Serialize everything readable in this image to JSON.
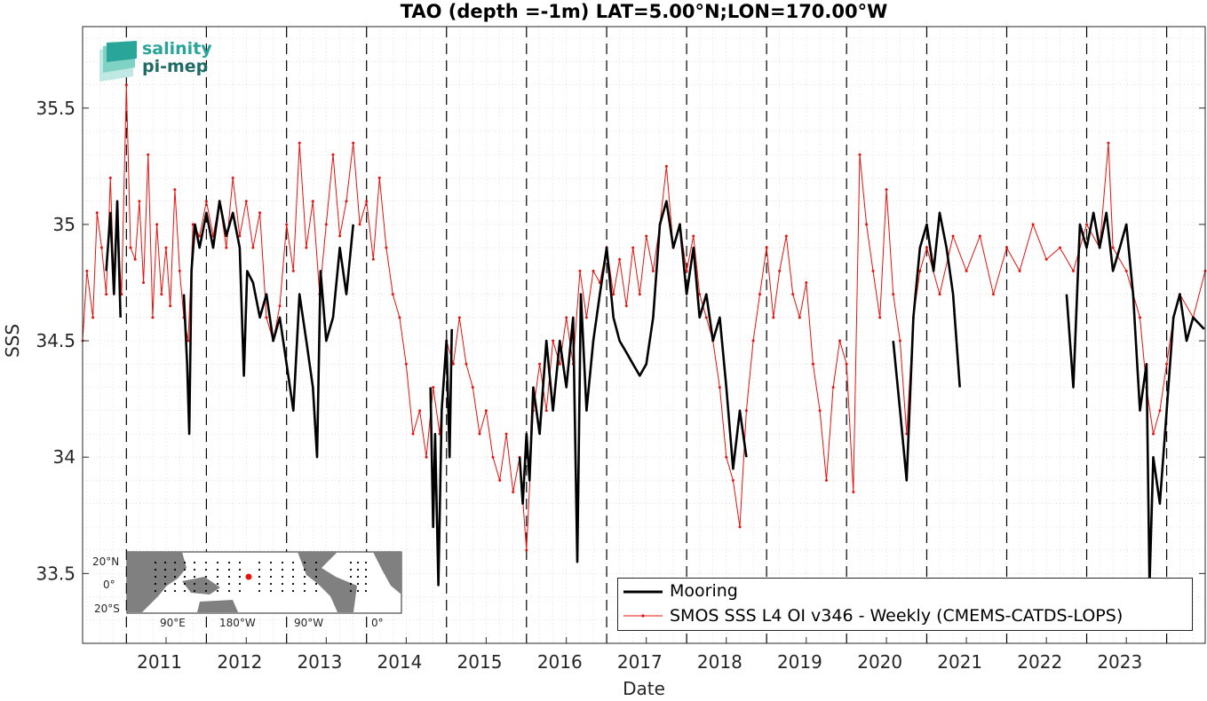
{
  "chart_data": {
    "type": "line",
    "title": "TAO (depth =-1m) LAT=5.00°N;LON=170.00°W",
    "xlabel": "Date",
    "ylabel": "SSS",
    "xlim": [
      "2010-06-15",
      "2024-06-25"
    ],
    "ylim": [
      33.2,
      35.85
    ],
    "x_ticks": [
      "2011",
      "2012",
      "2013",
      "2014",
      "2015",
      "2016",
      "2017",
      "2018",
      "2019",
      "2020",
      "2021",
      "2022",
      "2023"
    ],
    "y_ticks": [
      "33.5",
      "34",
      "34.5",
      "35",
      "35.5"
    ],
    "grid": true,
    "legend_position": "bottom-right",
    "series": [
      {
        "name": "Mooring",
        "color": "#000000",
        "points": [
          [
            "2010-10-01",
            34.8
          ],
          [
            "2010-10-20",
            35.05
          ],
          [
            "2010-11-05",
            34.7
          ],
          [
            "2010-11-20",
            35.1
          ],
          [
            "2010-12-05",
            34.6
          ],
          [
            "2011-09-20",
            34.7
          ],
          [
            "2011-10-05",
            34.4
          ],
          [
            "2011-10-15",
            34.1
          ],
          [
            "2011-10-25",
            34.8
          ],
          [
            "2011-11-10",
            35.0
          ],
          [
            "2011-12-01",
            34.9
          ],
          [
            "2012-01-01",
            35.05
          ],
          [
            "2012-02-01",
            34.9
          ],
          [
            "2012-03-01",
            35.1
          ],
          [
            "2012-04-01",
            34.95
          ],
          [
            "2012-05-01",
            35.05
          ],
          [
            "2012-06-01",
            34.9
          ],
          [
            "2012-06-20",
            34.35
          ],
          [
            "2012-07-05",
            34.8
          ],
          [
            "2012-08-01",
            34.75
          ],
          [
            "2012-09-01",
            34.6
          ],
          [
            "2012-10-01",
            34.7
          ],
          [
            "2012-11-01",
            34.5
          ],
          [
            "2012-12-01",
            34.6
          ],
          [
            "2013-01-01",
            34.4
          ],
          [
            "2013-02-01",
            34.2
          ],
          [
            "2013-03-01",
            34.7
          ],
          [
            "2013-04-01",
            34.5
          ],
          [
            "2013-05-01",
            34.3
          ],
          [
            "2013-05-20",
            34.0
          ],
          [
            "2013-06-05",
            34.8
          ],
          [
            "2013-07-01",
            34.5
          ],
          [
            "2013-08-01",
            34.6
          ],
          [
            "2013-09-01",
            34.9
          ],
          [
            "2013-10-01",
            34.7
          ],
          [
            "2013-11-01",
            35.0
          ],
          [
            "2014-10-20",
            34.3
          ],
          [
            "2014-11-01",
            33.7
          ],
          [
            "2014-11-10",
            34.1
          ],
          [
            "2014-11-25",
            33.45
          ],
          [
            "2014-12-10",
            34.2
          ],
          [
            "2015-01-01",
            34.5
          ],
          [
            "2015-01-15",
            34.0
          ],
          [
            "2015-01-25",
            34.55
          ],
          [
            "2015-12-01",
            34.0
          ],
          [
            "2015-12-15",
            33.8
          ],
          [
            "2016-01-01",
            34.1
          ],
          [
            "2016-01-15",
            33.9
          ],
          [
            "2016-02-01",
            34.3
          ],
          [
            "2016-03-01",
            34.1
          ],
          [
            "2016-04-01",
            34.5
          ],
          [
            "2016-05-01",
            34.2
          ],
          [
            "2016-06-01",
            34.5
          ],
          [
            "2016-07-01",
            34.3
          ],
          [
            "2016-08-01",
            34.6
          ],
          [
            "2016-08-20",
            33.55
          ],
          [
            "2016-09-05",
            34.7
          ],
          [
            "2016-10-01",
            34.2
          ],
          [
            "2016-11-01",
            34.5
          ],
          [
            "2016-12-01",
            34.7
          ],
          [
            "2017-01-01",
            34.9
          ],
          [
            "2017-02-01",
            34.6
          ],
          [
            "2017-03-01",
            34.5
          ],
          [
            "2017-04-01",
            34.45
          ],
          [
            "2017-05-01",
            34.4
          ],
          [
            "2017-06-01",
            34.35
          ],
          [
            "2017-07-01",
            34.4
          ],
          [
            "2017-08-01",
            34.6
          ],
          [
            "2017-09-01",
            35.0
          ],
          [
            "2017-10-01",
            35.1
          ],
          [
            "2017-11-01",
            34.9
          ],
          [
            "2017-12-01",
            35.0
          ],
          [
            "2018-01-01",
            34.7
          ],
          [
            "2018-02-01",
            34.9
          ],
          [
            "2018-03-01",
            34.6
          ],
          [
            "2018-04-01",
            34.7
          ],
          [
            "2018-05-01",
            34.5
          ],
          [
            "2018-06-01",
            34.6
          ],
          [
            "2018-07-01",
            34.3
          ],
          [
            "2018-08-01",
            33.95
          ],
          [
            "2018-09-01",
            34.2
          ],
          [
            "2018-10-01",
            34.0
          ],
          [
            "2020-08-01",
            34.5
          ],
          [
            "2020-09-01",
            34.2
          ],
          [
            "2020-10-01",
            33.9
          ],
          [
            "2020-11-01",
            34.6
          ],
          [
            "2020-12-01",
            34.9
          ],
          [
            "2021-01-01",
            35.0
          ],
          [
            "2021-02-01",
            34.8
          ],
          [
            "2021-03-01",
            35.05
          ],
          [
            "2021-04-01",
            34.9
          ],
          [
            "2021-05-01",
            34.7
          ],
          [
            "2021-06-01",
            34.3
          ],
          [
            "2022-10-01",
            34.7
          ],
          [
            "2022-11-01",
            34.3
          ],
          [
            "2022-12-01",
            35.0
          ],
          [
            "2023-01-01",
            34.9
          ],
          [
            "2023-02-01",
            35.05
          ],
          [
            "2023-03-01",
            34.9
          ],
          [
            "2023-04-01",
            35.05
          ],
          [
            "2023-05-01",
            34.8
          ],
          [
            "2023-06-01",
            34.9
          ],
          [
            "2023-07-01",
            35.0
          ],
          [
            "2023-08-01",
            34.7
          ],
          [
            "2023-09-01",
            34.2
          ],
          [
            "2023-10-01",
            34.4
          ],
          [
            "2023-10-15",
            33.45
          ],
          [
            "2023-11-01",
            34.0
          ],
          [
            "2023-12-01",
            33.8
          ],
          [
            "2024-01-01",
            34.2
          ],
          [
            "2024-02-01",
            34.6
          ],
          [
            "2024-03-01",
            34.7
          ],
          [
            "2024-04-01",
            34.5
          ],
          [
            "2024-05-01",
            34.6
          ],
          [
            "2024-06-20",
            34.55
          ]
        ]
      },
      {
        "name": "SMOS SSS L4 OI v346 - Weekly (CMEMS-CATDS-LOPS)",
        "color": "#e8120e",
        "points": [
          [
            "2010-06-15",
            34.5
          ],
          [
            "2010-07-05",
            34.8
          ],
          [
            "2010-08-01",
            34.6
          ],
          [
            "2010-08-20",
            35.05
          ],
          [
            "2010-09-10",
            34.9
          ],
          [
            "2010-10-01",
            34.7
          ],
          [
            "2010-10-20",
            35.2
          ],
          [
            "2010-11-05",
            34.75
          ],
          [
            "2010-11-20",
            35.0
          ],
          [
            "2010-12-10",
            34.7
          ],
          [
            "2011-01-01",
            35.6
          ],
          [
            "2011-01-20",
            34.9
          ],
          [
            "2011-02-10",
            34.85
          ],
          [
            "2011-03-01",
            35.1
          ],
          [
            "2011-03-20",
            34.75
          ],
          [
            "2011-04-10",
            35.3
          ],
          [
            "2011-05-01",
            34.6
          ],
          [
            "2011-05-20",
            35.0
          ],
          [
            "2011-06-10",
            34.7
          ],
          [
            "2011-07-01",
            34.9
          ],
          [
            "2011-07-20",
            34.65
          ],
          [
            "2011-08-10",
            35.15
          ],
          [
            "2011-09-01",
            34.8
          ],
          [
            "2011-09-20",
            34.6
          ],
          [
            "2011-10-10",
            34.5
          ],
          [
            "2011-11-01",
            35.0
          ],
          [
            "2011-12-01",
            34.95
          ],
          [
            "2012-01-01",
            35.1
          ],
          [
            "2012-02-01",
            34.95
          ],
          [
            "2012-03-01",
            35.1
          ],
          [
            "2012-04-01",
            34.9
          ],
          [
            "2012-05-01",
            35.2
          ],
          [
            "2012-06-01",
            34.95
          ],
          [
            "2012-07-01",
            35.1
          ],
          [
            "2012-08-01",
            34.9
          ],
          [
            "2012-09-01",
            35.05
          ],
          [
            "2012-10-01",
            34.6
          ],
          [
            "2012-11-01",
            34.5
          ],
          [
            "2012-12-01",
            34.65
          ],
          [
            "2013-01-01",
            35.0
          ],
          [
            "2013-02-01",
            34.8
          ],
          [
            "2013-03-01",
            35.35
          ],
          [
            "2013-04-01",
            34.9
          ],
          [
            "2013-05-01",
            35.1
          ],
          [
            "2013-06-01",
            34.7
          ],
          [
            "2013-07-01",
            35.0
          ],
          [
            "2013-08-01",
            35.3
          ],
          [
            "2013-09-01",
            34.95
          ],
          [
            "2013-10-01",
            35.1
          ],
          [
            "2013-11-01",
            35.35
          ],
          [
            "2013-12-01",
            35.0
          ],
          [
            "2014-01-01",
            35.1
          ],
          [
            "2014-02-01",
            34.85
          ],
          [
            "2014-03-01",
            35.2
          ],
          [
            "2014-04-01",
            34.9
          ],
          [
            "2014-05-01",
            34.7
          ],
          [
            "2014-06-01",
            34.6
          ],
          [
            "2014-07-01",
            34.4
          ],
          [
            "2014-08-01",
            34.1
          ],
          [
            "2014-09-01",
            34.2
          ],
          [
            "2014-10-01",
            34.0
          ],
          [
            "2014-11-01",
            34.3
          ],
          [
            "2014-12-01",
            34.1
          ],
          [
            "2015-01-01",
            34.5
          ],
          [
            "2015-02-01",
            34.4
          ],
          [
            "2015-03-01",
            34.6
          ],
          [
            "2015-04-01",
            34.4
          ],
          [
            "2015-05-01",
            34.3
          ],
          [
            "2015-06-01",
            34.1
          ],
          [
            "2015-07-01",
            34.2
          ],
          [
            "2015-08-01",
            34.0
          ],
          [
            "2015-09-01",
            33.9
          ],
          [
            "2015-10-01",
            34.1
          ],
          [
            "2015-11-01",
            33.85
          ],
          [
            "2015-12-01",
            34.0
          ],
          [
            "2016-01-01",
            33.6
          ],
          [
            "2016-02-01",
            34.2
          ],
          [
            "2016-03-01",
            34.4
          ],
          [
            "2016-04-01",
            34.2
          ],
          [
            "2016-05-01",
            34.5
          ],
          [
            "2016-06-01",
            34.4
          ],
          [
            "2016-07-01",
            34.6
          ],
          [
            "2016-08-01",
            34.4
          ],
          [
            "2016-09-01",
            34.8
          ],
          [
            "2016-10-01",
            34.6
          ],
          [
            "2016-11-01",
            34.8
          ],
          [
            "2016-12-01",
            34.75
          ],
          [
            "2017-01-01",
            34.9
          ],
          [
            "2017-02-01",
            34.7
          ],
          [
            "2017-03-01",
            34.85
          ],
          [
            "2017-04-01",
            34.65
          ],
          [
            "2017-05-01",
            34.9
          ],
          [
            "2017-06-01",
            34.7
          ],
          [
            "2017-07-01",
            34.95
          ],
          [
            "2017-08-01",
            34.8
          ],
          [
            "2017-09-01",
            35.0
          ],
          [
            "2017-10-01",
            35.25
          ],
          [
            "2017-11-01",
            34.9
          ],
          [
            "2017-12-01",
            35.0
          ],
          [
            "2018-01-01",
            34.8
          ],
          [
            "2018-02-01",
            34.95
          ],
          [
            "2018-03-01",
            34.7
          ],
          [
            "2018-04-01",
            34.6
          ],
          [
            "2018-05-01",
            34.5
          ],
          [
            "2018-06-01",
            34.3
          ],
          [
            "2018-07-01",
            34.0
          ],
          [
            "2018-08-01",
            33.9
          ],
          [
            "2018-09-01",
            33.7
          ],
          [
            "2018-10-01",
            34.2
          ],
          [
            "2018-11-01",
            34.5
          ],
          [
            "2018-12-01",
            34.7
          ],
          [
            "2019-01-01",
            34.9
          ],
          [
            "2019-02-01",
            34.6
          ],
          [
            "2019-03-01",
            34.8
          ],
          [
            "2019-04-01",
            34.95
          ],
          [
            "2019-05-01",
            34.7
          ],
          [
            "2019-06-01",
            34.6
          ],
          [
            "2019-07-01",
            34.75
          ],
          [
            "2019-08-01",
            34.4
          ],
          [
            "2019-09-01",
            34.2
          ],
          [
            "2019-10-01",
            33.9
          ],
          [
            "2019-11-01",
            34.3
          ],
          [
            "2019-12-01",
            34.5
          ],
          [
            "2020-01-01",
            34.4
          ],
          [
            "2020-02-01",
            33.85
          ],
          [
            "2020-03-01",
            35.3
          ],
          [
            "2020-04-01",
            35.0
          ],
          [
            "2020-05-01",
            34.8
          ],
          [
            "2020-06-01",
            34.6
          ],
          [
            "2020-07-01",
            35.15
          ],
          [
            "2020-08-01",
            34.7
          ],
          [
            "2020-09-01",
            34.5
          ],
          [
            "2020-10-01",
            34.1
          ],
          [
            "2020-11-01",
            34.6
          ],
          [
            "2020-12-01",
            34.8
          ],
          [
            "2021-01-01",
            34.9
          ],
          [
            "2021-03-01",
            34.7
          ],
          [
            "2021-05-01",
            34.95
          ],
          [
            "2021-07-01",
            34.8
          ],
          [
            "2021-09-01",
            34.95
          ],
          [
            "2021-11-01",
            34.7
          ],
          [
            "2022-01-01",
            34.9
          ],
          [
            "2022-03-01",
            34.8
          ],
          [
            "2022-05-01",
            35.0
          ],
          [
            "2022-07-01",
            34.85
          ],
          [
            "2022-09-01",
            34.9
          ],
          [
            "2022-11-01",
            34.8
          ],
          [
            "2023-01-01",
            35.0
          ],
          [
            "2023-03-01",
            34.9
          ],
          [
            "2023-04-10",
            35.35
          ],
          [
            "2023-05-01",
            34.9
          ],
          [
            "2023-07-01",
            34.8
          ],
          [
            "2023-09-01",
            34.6
          ],
          [
            "2023-10-01",
            34.3
          ],
          [
            "2023-11-01",
            34.1
          ],
          [
            "2023-12-01",
            34.2
          ],
          [
            "2024-01-01",
            34.4
          ],
          [
            "2024-02-01",
            34.6
          ],
          [
            "2024-03-01",
            34.7
          ],
          [
            "2024-05-01",
            34.6
          ],
          [
            "2024-06-25",
            34.8
          ]
        ]
      }
    ]
  },
  "logo": {
    "line1": "salinity",
    "line2": "pi-mep"
  },
  "inset_map": {
    "y_ticks": [
      "20°N",
      "0°",
      "20°S"
    ],
    "x_ticks": [
      "90°E",
      "180°W",
      "90°W",
      "0°"
    ]
  }
}
